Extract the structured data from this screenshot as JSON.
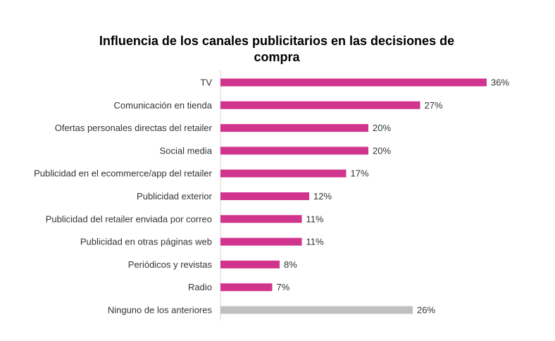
{
  "chart_data": {
    "type": "bar",
    "orientation": "horizontal",
    "title_lines": [
      "Influencia de los canales publicitarios en las decisiones de",
      "compra"
    ],
    "categories": [
      "TV",
      "Comunicación en tienda",
      "Ofertas personales directas del retailer",
      "Social media",
      "Publicidad en el ecommerce/app del retailer",
      "Publicidad exterior",
      "Publicidad del retailer enviada por correo",
      "Publicidad en otras páginas web",
      "Periódicos y revistas",
      "Radio",
      "Ninguno de los anteriores"
    ],
    "values": [
      36,
      27,
      20,
      20,
      17,
      12,
      11,
      11,
      8,
      7,
      26
    ],
    "value_labels": [
      "36%",
      "27%",
      "20%",
      "20%",
      "17%",
      "12%",
      "11%",
      "11%",
      "8%",
      "7%",
      "26%"
    ],
    "unit": "%",
    "xlim": [
      0,
      40
    ],
    "grid": false,
    "legend": "none",
    "colors": {
      "primary": "#D1348D",
      "highlight": "#C0C0C0"
    },
    "bar_colors": [
      "primary",
      "primary",
      "primary",
      "primary",
      "primary",
      "primary",
      "primary",
      "primary",
      "primary",
      "primary",
      "highlight"
    ]
  }
}
